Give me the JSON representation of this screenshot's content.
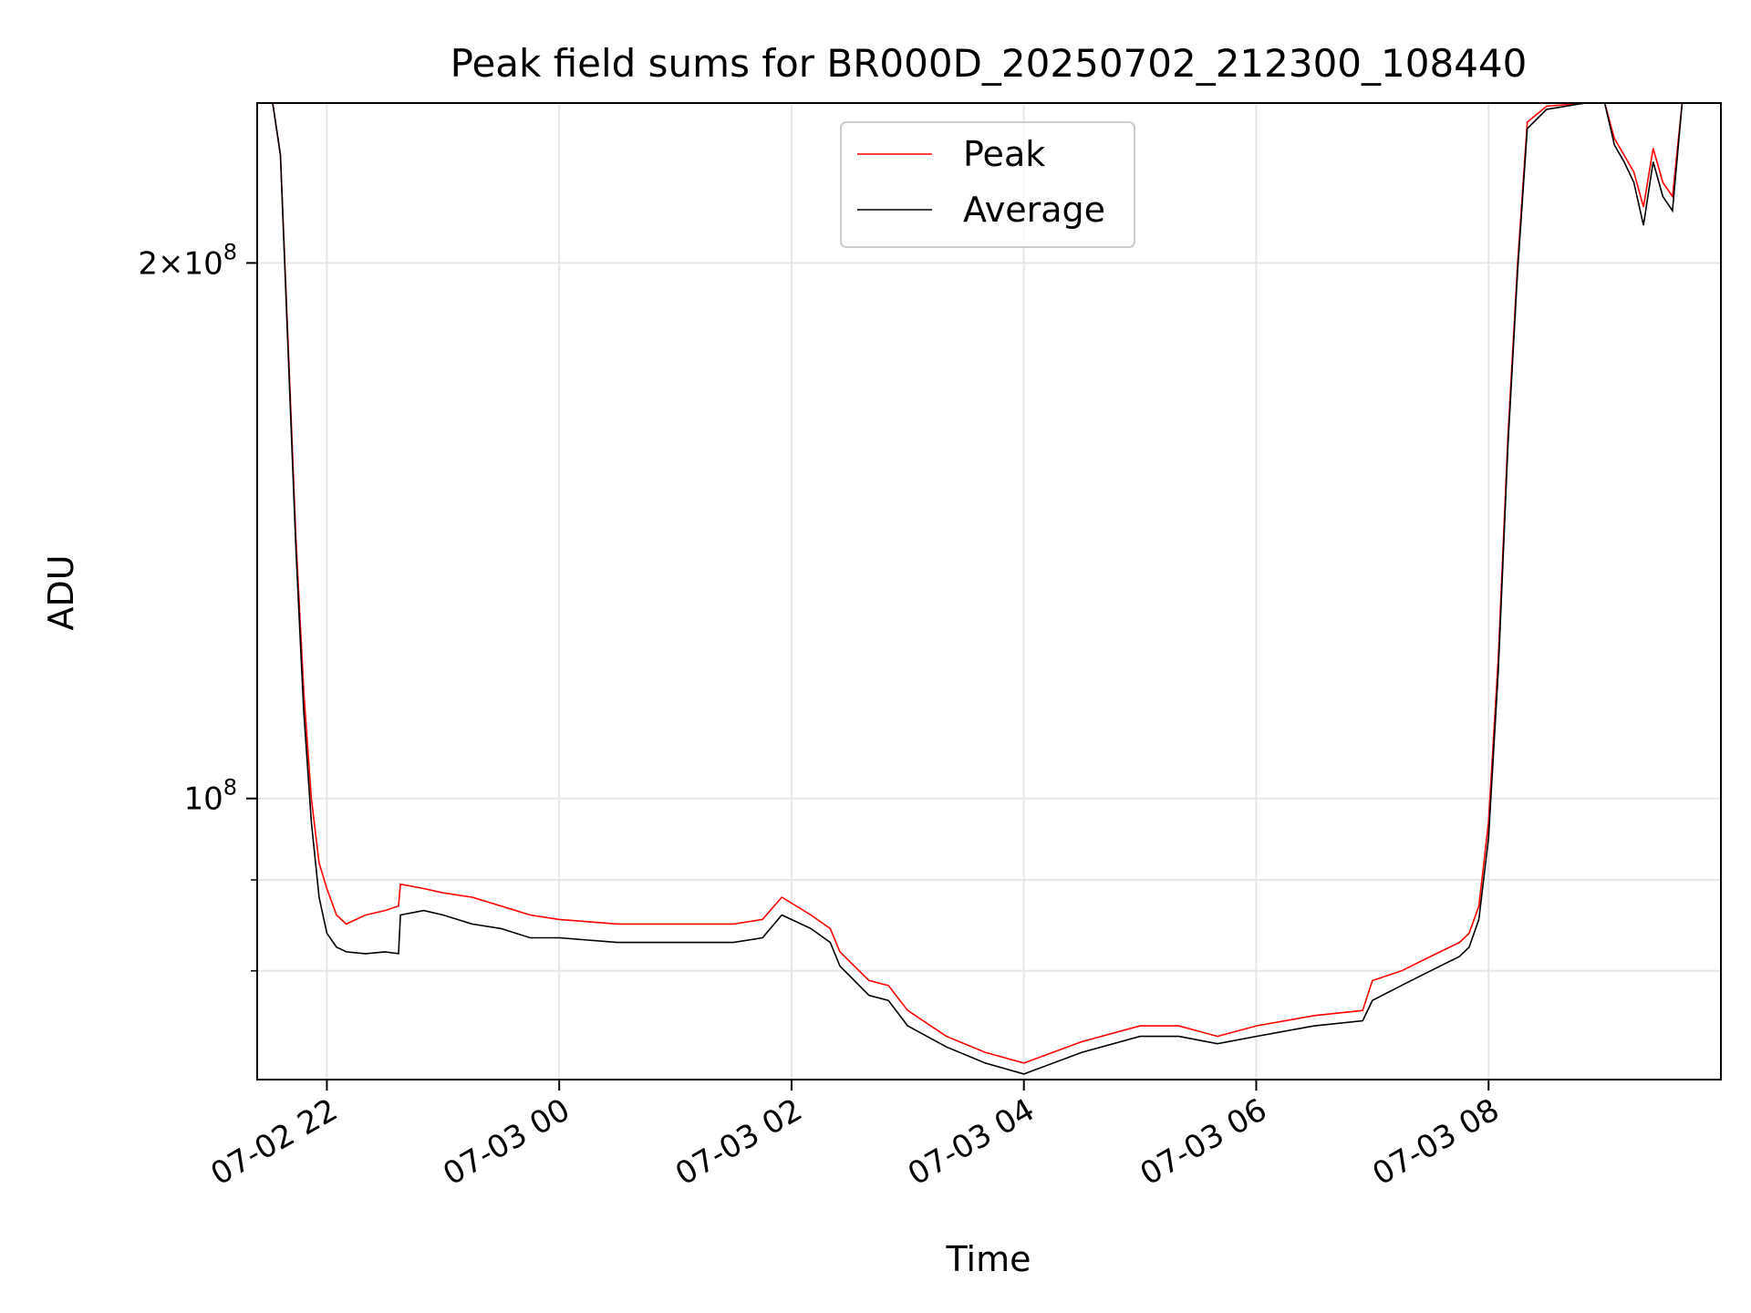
{
  "chart_data": {
    "type": "line",
    "title": "Peak field sums for BR000D_20250702_212300_108440",
    "xlabel": "Time",
    "ylabel": "ADU",
    "yscale": "log",
    "ylim": [
      69500000,
      246000000
    ],
    "xlim": [
      "2025-07-02 21:24",
      "2025-07-03 10:00"
    ],
    "grid": true,
    "legend_position": "top-center",
    "x_ticks": [
      "2025-07-02 22:00",
      "2025-07-03 00:00",
      "2025-07-03 02:00",
      "2025-07-03 04:00",
      "2025-07-03 06:00",
      "2025-07-03 08:00"
    ],
    "x_tick_labels": [
      "07-02 22",
      "07-03 00",
      "07-03 02",
      "07-03 04",
      "07-03 06",
      "07-03 08"
    ],
    "y_major_ticks": [
      100000000,
      200000000
    ],
    "y_major_labels": [
      {
        "mantissa": "",
        "base": "10",
        "exp": "8"
      },
      {
        "mantissa": "2",
        "base": "10",
        "exp": "8"
      }
    ],
    "y_minor_ticks": [
      80000000,
      90000000
    ],
    "series": [
      {
        "name": "Peak",
        "color": "#ff0000",
        "x": [
          "2025-07-02 21:24",
          "2025-07-02 21:32",
          "2025-07-02 21:36",
          "2025-07-02 21:40",
          "2025-07-02 21:44",
          "2025-07-02 21:48",
          "2025-07-02 21:52",
          "2025-07-02 21:56",
          "2025-07-02 22:00",
          "2025-07-02 22:05",
          "2025-07-02 22:10",
          "2025-07-02 22:20",
          "2025-07-02 22:30",
          "2025-07-02 22:37",
          "2025-07-02 22:38",
          "2025-07-02 22:50",
          "2025-07-02 23:00",
          "2025-07-02 23:15",
          "2025-07-02 23:30",
          "2025-07-02 23:45",
          "2025-07-03 00:00",
          "2025-07-03 00:30",
          "2025-07-03 01:00",
          "2025-07-03 01:30",
          "2025-07-03 01:45",
          "2025-07-03 01:55",
          "2025-07-03 02:10",
          "2025-07-03 02:20",
          "2025-07-03 02:25",
          "2025-07-03 02:40",
          "2025-07-03 02:50",
          "2025-07-03 03:00",
          "2025-07-03 03:20",
          "2025-07-03 03:40",
          "2025-07-03 04:00",
          "2025-07-03 04:30",
          "2025-07-03 05:00",
          "2025-07-03 05:20",
          "2025-07-03 05:40",
          "2025-07-03 06:00",
          "2025-07-03 06:30",
          "2025-07-03 06:55",
          "2025-07-03 07:00",
          "2025-07-03 07:15",
          "2025-07-03 07:30",
          "2025-07-03 07:45",
          "2025-07-03 07:50",
          "2025-07-03 07:55",
          "2025-07-03 08:00",
          "2025-07-03 08:05",
          "2025-07-03 08:10",
          "2025-07-03 08:15",
          "2025-07-03 08:20",
          "2025-07-03 08:30",
          "2025-07-03 08:50",
          "2025-07-03 09:00",
          "2025-07-03 09:05",
          "2025-07-03 09:10",
          "2025-07-03 09:15",
          "2025-07-03 09:20",
          "2025-07-03 09:25",
          "2025-07-03 09:30",
          "2025-07-03 09:35",
          "2025-07-03 09:40",
          "2025-07-03 09:48"
        ],
        "y": [
          246000000,
          246000000,
          230000000,
          180000000,
          140000000,
          115000000,
          100000000,
          92000000,
          89000000,
          86000000,
          85000000,
          86000000,
          86500000,
          87000000,
          89500000,
          89000000,
          88500000,
          88000000,
          87000000,
          86000000,
          85500000,
          85000000,
          85000000,
          85000000,
          85500000,
          88000000,
          86000000,
          84500000,
          82000000,
          79000000,
          78500000,
          76000000,
          73500000,
          72000000,
          71000000,
          73000000,
          74500000,
          74500000,
          73500000,
          74500000,
          75500000,
          76000000,
          79000000,
          80000000,
          81500000,
          83000000,
          84000000,
          87000000,
          97000000,
          120000000,
          160000000,
          200000000,
          240000000,
          245000000,
          246000000,
          246000000,
          235000000,
          230000000,
          225000000,
          215000000,
          232000000,
          222000000,
          218000000,
          246000000,
          246000000
        ]
      },
      {
        "name": "Average",
        "color": "#000000",
        "x": [
          "2025-07-02 21:24",
          "2025-07-02 21:32",
          "2025-07-02 21:36",
          "2025-07-02 21:40",
          "2025-07-02 21:44",
          "2025-07-02 21:48",
          "2025-07-02 21:52",
          "2025-07-02 21:56",
          "2025-07-02 22:00",
          "2025-07-02 22:05",
          "2025-07-02 22:10",
          "2025-07-02 22:20",
          "2025-07-02 22:30",
          "2025-07-02 22:37",
          "2025-07-02 22:38",
          "2025-07-02 22:50",
          "2025-07-02 23:00",
          "2025-07-02 23:15",
          "2025-07-02 23:30",
          "2025-07-02 23:45",
          "2025-07-03 00:00",
          "2025-07-03 00:30",
          "2025-07-03 01:00",
          "2025-07-03 01:30",
          "2025-07-03 01:45",
          "2025-07-03 01:55",
          "2025-07-03 02:10",
          "2025-07-03 02:20",
          "2025-07-03 02:25",
          "2025-07-03 02:40",
          "2025-07-03 02:50",
          "2025-07-03 03:00",
          "2025-07-03 03:20",
          "2025-07-03 03:40",
          "2025-07-03 04:00",
          "2025-07-03 04:30",
          "2025-07-03 05:00",
          "2025-07-03 05:20",
          "2025-07-03 05:40",
          "2025-07-03 06:00",
          "2025-07-03 06:30",
          "2025-07-03 06:55",
          "2025-07-03 07:00",
          "2025-07-03 07:15",
          "2025-07-03 07:30",
          "2025-07-03 07:45",
          "2025-07-03 07:50",
          "2025-07-03 07:55",
          "2025-07-03 08:00",
          "2025-07-03 08:05",
          "2025-07-03 08:10",
          "2025-07-03 08:15",
          "2025-07-03 08:20",
          "2025-07-03 08:30",
          "2025-07-03 08:50",
          "2025-07-03 09:00",
          "2025-07-03 09:05",
          "2025-07-03 09:10",
          "2025-07-03 09:15",
          "2025-07-03 09:20",
          "2025-07-03 09:25",
          "2025-07-03 09:30",
          "2025-07-03 09:35",
          "2025-07-03 09:40",
          "2025-07-03 09:48"
        ],
        "y": [
          246000000,
          246000000,
          230000000,
          178000000,
          138000000,
          112000000,
          97000000,
          88000000,
          84000000,
          82500000,
          82000000,
          81800000,
          82000000,
          81800000,
          86000000,
          86500000,
          86000000,
          85000000,
          84500000,
          83500000,
          83500000,
          83000000,
          83000000,
          83000000,
          83500000,
          86000000,
          84500000,
          83000000,
          80500000,
          77500000,
          77000000,
          74500000,
          72500000,
          71000000,
          70000000,
          72000000,
          73500000,
          73500000,
          72800000,
          73500000,
          74500000,
          75000000,
          77000000,
          78500000,
          80000000,
          81500000,
          82500000,
          85500000,
          95000000,
          118000000,
          158000000,
          198000000,
          238000000,
          244000000,
          246000000,
          246000000,
          233000000,
          228000000,
          222000000,
          210000000,
          228000000,
          218000000,
          214000000,
          246000000,
          246000000
        ]
      }
    ]
  }
}
